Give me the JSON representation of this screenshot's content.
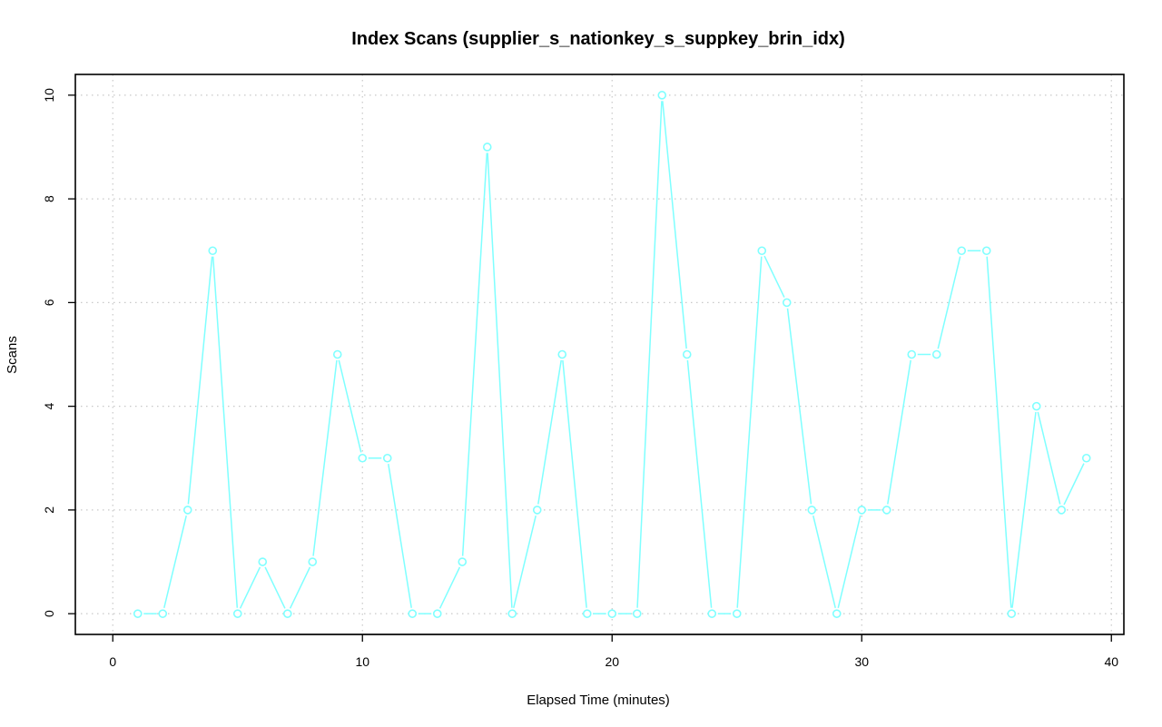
{
  "chart_data": {
    "type": "line",
    "title": "Index Scans (supplier_s_nationkey_s_suppkey_brin_idx)",
    "xlabel": "Elapsed Time (minutes)",
    "ylabel": "Scans",
    "xlim": [
      -1.5,
      40.5
    ],
    "ylim": [
      -0.4,
      10.4
    ],
    "x_ticks": [
      0,
      10,
      20,
      30,
      40
    ],
    "y_ticks": [
      0,
      2,
      4,
      6,
      8,
      10
    ],
    "grid": true,
    "legend": "none",
    "series": [
      {
        "color": "#7fffff",
        "x": [
          1,
          2,
          3,
          4,
          5,
          6,
          7,
          8,
          9,
          10,
          11,
          12,
          13,
          14,
          15,
          16,
          17,
          18,
          19,
          20,
          21,
          22,
          23,
          24,
          25,
          26,
          27,
          28,
          29,
          30,
          31,
          32,
          33,
          34,
          35,
          36,
          37,
          38,
          39
        ],
        "y": [
          0,
          0,
          2,
          7,
          0,
          1,
          0,
          1,
          5,
          3,
          3,
          0,
          0,
          1,
          9,
          0,
          2,
          5,
          0,
          0,
          0,
          10,
          5,
          0,
          0,
          7,
          6,
          2,
          0,
          2,
          2,
          5,
          5,
          7,
          7,
          0,
          4,
          2,
          3
        ]
      }
    ]
  }
}
